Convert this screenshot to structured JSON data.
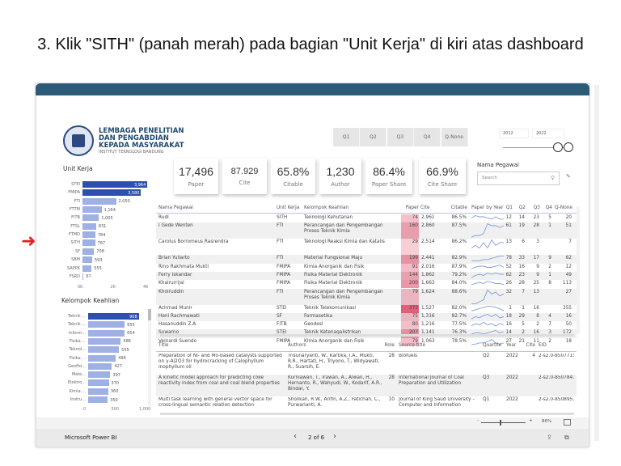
{
  "instruction": "3. Klik \"SITH\" (panah merah) pada bagian \"Unit Kerja\" di kiri atas dashboard",
  "logo": {
    "line1": "LEMBAGA PENELITIAN",
    "line2": "DAN PENGABDIAN",
    "line3": "KEPADA MASYARAKAT",
    "line4": "INSTITUT TEKNOLOGI BANDUNG"
  },
  "quartile_buttons": [
    "Q1",
    "Q2",
    "Q3",
    "Q4",
    "Q-None"
  ],
  "year_range": {
    "from": "2012",
    "to": "2022"
  },
  "kpis": [
    {
      "value": "17,496",
      "label": "Paper"
    },
    {
      "value": "87.929",
      "label": "Cite"
    },
    {
      "value": "65.8%",
      "label": "Citable"
    },
    {
      "value": "1,230",
      "label": "Author"
    },
    {
      "value": "86.4%",
      "label": "Paper Share"
    },
    {
      "value": "66.9%",
      "label": "Cite Share"
    }
  ],
  "search": {
    "label": "Nama Pegawai",
    "placeholder": "Search"
  },
  "unit_kerja": {
    "title": "Unit Kerja",
    "axis": [
      "0K",
      "2K",
      "4K"
    ],
    "max": 4000,
    "highlight": "SITH",
    "items": [
      {
        "label": "STEI",
        "value": 3964,
        "text": "3,964"
      },
      {
        "label": "FMIPA",
        "value": 3580,
        "text": "3,580"
      },
      {
        "label": "FTI",
        "value": 2050,
        "text": "2,050"
      },
      {
        "label": "FTTM",
        "value": 1164,
        "text": "1,164"
      },
      {
        "label": "FITB",
        "value": 1005,
        "text": "1,005"
      },
      {
        "label": "FTSL",
        "value": 831,
        "text": "831"
      },
      {
        "label": "FTMD",
        "value": 784,
        "text": "784"
      },
      {
        "label": "SITH",
        "value": 767,
        "text": "767"
      },
      {
        "label": "SF",
        "value": 708,
        "text": "708"
      },
      {
        "label": "SBM",
        "value": 593,
        "text": "593"
      },
      {
        "label": "SAPPK",
        "value": 555,
        "text": "555"
      },
      {
        "label": "FSRD",
        "value": 67,
        "text": "67"
      }
    ]
  },
  "kelompok": {
    "title": "Kelompok Keahlian",
    "axis": [
      "0",
      "500",
      "1,000"
    ],
    "max": 1000,
    "items": [
      {
        "label": "Teknik ...",
        "value": 908,
        "text": "908"
      },
      {
        "label": "Teknik ...",
        "value": 655,
        "text": "655"
      },
      {
        "label": "Inform...",
        "value": 654,
        "text": "654"
      },
      {
        "label": "Fisika ...",
        "value": 586,
        "text": "586"
      },
      {
        "label": "Teknol...",
        "value": 555,
        "text": "555"
      },
      {
        "label": "Fisika ...",
        "value": 496,
        "text": "496"
      },
      {
        "label": "Geofisi...",
        "value": 427,
        "text": "427"
      },
      {
        "label": "Mate...",
        "value": 397,
        "text": "397"
      },
      {
        "label": "Elektro...",
        "value": 370,
        "text": "370"
      },
      {
        "label": "Kimia ...",
        "value": 360,
        "text": "360"
      },
      {
        "label": "Instru...",
        "value": 350,
        "text": "350"
      }
    ]
  },
  "employee_table": {
    "headers": [
      "Nama Pegawai",
      "Unit Kerja",
      "Kelompok Keahlian",
      "Paper",
      "Cite",
      "Citable",
      "Paper by Year",
      "Q1",
      "Q2",
      "Q3",
      "Q4",
      "Q-None"
    ],
    "rows": [
      {
        "name": "Rudi",
        "unit": "SITH",
        "kk": "Teknologi Kehutanan",
        "paper": 74,
        "cite": "2,961",
        "citable": "86.5%",
        "q1": "12",
        "q2": "14",
        "q3": "23",
        "q4": "5",
        "qn": "20",
        "spark": [
          3,
          5,
          4,
          4,
          3,
          2,
          4,
          2,
          2
        ]
      },
      {
        "name": "I Gede Wenten",
        "unit": "FTI",
        "kk": "Perancangan dan Pengembangan Proses Teknik Kimia",
        "paper": 160,
        "cite": "2,860",
        "citable": "87.5%",
        "q1": "61",
        "q2": "19",
        "q3": "28",
        "q4": "1",
        "qn": "51",
        "spark": [
          0,
          1,
          1,
          2,
          7,
          6,
          6,
          5,
          6
        ]
      },
      {
        "name": "Carolus Borromeus Rasrendra",
        "unit": "FTI",
        "kk": "Teknologi Reaksi Kimia dan Katalis",
        "paper": 29,
        "cite": "2,514",
        "citable": "86.2%",
        "q1": "13",
        "q2": "6",
        "q3": "3",
        "q4": "",
        "qn": "7",
        "spark": [
          2,
          3,
          2,
          4,
          2,
          5,
          3,
          4,
          4
        ]
      },
      {
        "name": "Brian Yuliarto",
        "unit": "FTI",
        "kk": "Material Fungsional Maju",
        "paper": 199,
        "cite": "2,441",
        "citable": "82.9%",
        "q1": "78",
        "q2": "33",
        "q3": "17",
        "q4": "9",
        "qn": "62",
        "spark": [
          1,
          1,
          1,
          2,
          2,
          3,
          4,
          5,
          5
        ]
      },
      {
        "name": "Rino Rakhmata Mukti",
        "unit": "FMIPA",
        "kk": "Kimia Anorganik dan Fisik",
        "paper": 91,
        "cite": "2,016",
        "citable": "87.9%",
        "q1": "52",
        "q2": "16",
        "q3": "9",
        "q4": "2",
        "qn": "12",
        "spark": [
          2,
          3,
          4,
          4,
          3,
          3,
          4,
          5,
          3
        ]
      },
      {
        "name": "Ferry Iskandar",
        "unit": "FMIPA",
        "kk": "Fisika Material Elektronik",
        "paper": 144,
        "cite": "1,862",
        "citable": "79.2%",
        "q1": "62",
        "q2": "23",
        "q3": "9",
        "q4": "1",
        "qn": "49",
        "spark": [
          1,
          3,
          4,
          3,
          5,
          4,
          5,
          4,
          4
        ]
      },
      {
        "name": "Khairurrijal",
        "unit": "FMIPA",
        "kk": "Fisika Material Elektronik",
        "paper": 200,
        "cite": "1,663",
        "citable": "84.0%",
        "q1": "26",
        "q2": "28",
        "q3": "25",
        "q4": "8",
        "qn": "113",
        "spark": [
          2,
          3,
          4,
          3,
          5,
          4,
          3,
          3,
          2
        ]
      },
      {
        "name": "Khoiruddin",
        "unit": "FTI",
        "kk": "Perancangan dan Pengembangan Proses Teknik Kimia",
        "paper": 79,
        "cite": "1,624",
        "citable": "88.6%",
        "q1": "32",
        "q2": "7",
        "q3": "13",
        "q4": "",
        "qn": "27",
        "spark": [
          0,
          0,
          1,
          2,
          7,
          5,
          6,
          4,
          5
        ]
      },
      {
        "name": "Achmad Munir",
        "unit": "STEI",
        "kk": "Teknik Telekomunikasi",
        "paper": 373,
        "cite": "1,527",
        "citable": "82.0%",
        "q1": "1",
        "q2": "1",
        "q3": "16",
        "q4": "",
        "qn": "355",
        "spark": [
          1,
          2,
          3,
          4,
          5,
          5,
          4,
          3,
          1
        ]
      },
      {
        "name": "Heni Rachmawati",
        "unit": "SF",
        "kk": "Farmasetika",
        "paper": 75,
        "cite": "1,316",
        "citable": "82.7%",
        "q1": "18",
        "q2": "29",
        "q3": "8",
        "q4": "4",
        "qn": "16",
        "spark": [
          1,
          3,
          2,
          4,
          5,
          3,
          5,
          2,
          3
        ]
      },
      {
        "name": "Hasanuddin Z.A.",
        "unit": "FITB",
        "kk": "Geodesi",
        "paper": 80,
        "cite": "1,216",
        "citable": "77.5%",
        "q1": "16",
        "q2": "5",
        "q3": "2",
        "q4": "7",
        "qn": "50",
        "spark": [
          2,
          4,
          3,
          5,
          3,
          4,
          2,
          4,
          3
        ]
      },
      {
        "name": "Suwarno",
        "unit": "STEI",
        "kk": "Teknik Ketenagalistrikan",
        "paper": 207,
        "cite": "1,141",
        "citable": "76.3%",
        "q1": "14",
        "q2": "2",
        "q3": "16",
        "q4": "3",
        "qn": "172",
        "spark": [
          2,
          3,
          3,
          2,
          3,
          4,
          5,
          3,
          4
        ]
      },
      {
        "name": "Veinardi Suendo",
        "unit": "FMIPA",
        "kk": "Kimia Anorganik dan Fisik",
        "paper": 79,
        "cite": "1,063",
        "citable": "78.5%",
        "q1": "27",
        "q2": "21",
        "q3": "11",
        "q4": "2",
        "qn": "18",
        "spark": [
          1,
          1,
          2,
          2,
          3,
          5,
          2,
          1,
          2
        ]
      }
    ]
  },
  "paper_table": {
    "headers": [
      "Title",
      "Authors",
      "Role",
      "Source title",
      "Quartile",
      "Year",
      "Cite",
      "EID"
    ],
    "rows": [
      {
        "title": "Preparation of Ni- and Mo-based catalysts supported on γ-Al2O3 for hydrocracking of Calophyllum inophyllum oil",
        "authors": "Trisunaryanti, W., Kartika, I.A., Mukti, R.R., Hartati, H., Triyono, T., Widyawati, R., Suarsih, E.",
        "role": "28",
        "source": "Biofuels",
        "quartile": "Q2",
        "year": "2022",
        "cite": "4",
        "eid": "2-s2.0-8507715"
      },
      {
        "title": "A kinetic model approach for predicting coke reactivity index from coal and coal blend properties",
        "authors": "Kurniawan, T., Irawan, A., Alwan, H., Hernanto, R., Wahyudi, W., Kodarif, A.R., Bindar, Y.",
        "role": "28",
        "source": "International Journal of Coal Preparation and Utilization",
        "quartile": "Q3",
        "year": "2022",
        "cite": "",
        "eid": "2-s2.0-8507847"
      },
      {
        "title": "Multi task learning with general vector space for cross-lingual semantic relation detection",
        "authors": "Sholikah, R.W., Arifin, A.Z., Fatichah, C., Purwarianti, A.",
        "role": "10",
        "source": "Journal of King Saud University - Computer and Information",
        "quartile": "Q1",
        "year": "2022",
        "cite": "",
        "eid": "2-s2.0-8508957"
      }
    ]
  },
  "zoom": {
    "value": "86%",
    "minus": "-",
    "plus": "+"
  },
  "footer": {
    "brand": "Microsoft Power BI",
    "page": "2 of 6"
  },
  "colors": {
    "header_bar": "#2c5b78",
    "bar_dark": "#2f4fb0",
    "bar_light": "#9fb0e4",
    "paper_heat": "#e0607a",
    "arrow": "#e8201c"
  }
}
